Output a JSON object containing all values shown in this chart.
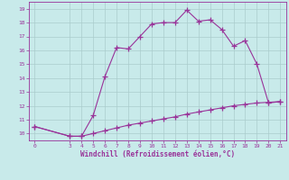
{
  "xlabel": "Windchill (Refroidissement éolien,°C)",
  "bg_color": "#c8eaea",
  "line_color": "#993399",
  "grid_color": "#aacccc",
  "curve1_x": [
    0,
    3,
    4,
    5,
    6,
    7,
    8,
    9,
    10,
    11,
    12,
    13,
    14,
    15,
    16,
    17,
    18,
    19,
    20,
    21
  ],
  "curve1_y": [
    10.5,
    9.8,
    9.8,
    11.3,
    14.1,
    16.2,
    16.1,
    17.0,
    17.9,
    18.0,
    18.0,
    18.9,
    18.1,
    18.2,
    17.5,
    16.3,
    16.7,
    15.0,
    12.2,
    12.3
  ],
  "curve2_x": [
    0,
    3,
    4,
    5,
    6,
    7,
    8,
    9,
    10,
    11,
    12,
    13,
    14,
    15,
    16,
    17,
    18,
    19,
    20,
    21
  ],
  "curve2_y": [
    10.5,
    9.8,
    9.8,
    10.0,
    10.2,
    10.4,
    10.6,
    10.75,
    10.9,
    11.05,
    11.2,
    11.4,
    11.55,
    11.7,
    11.85,
    12.0,
    12.1,
    12.2,
    12.25,
    12.3
  ],
  "xlim": [
    -0.5,
    21.5
  ],
  "ylim": [
    9.5,
    19.5
  ],
  "yticks": [
    10,
    11,
    12,
    13,
    14,
    15,
    16,
    17,
    18,
    19
  ],
  "xticks": [
    0,
    3,
    4,
    5,
    6,
    7,
    8,
    9,
    10,
    11,
    12,
    13,
    14,
    15,
    16,
    17,
    18,
    19,
    20,
    21
  ],
  "marker": "+",
  "markersize": 4,
  "linewidth": 0.8
}
